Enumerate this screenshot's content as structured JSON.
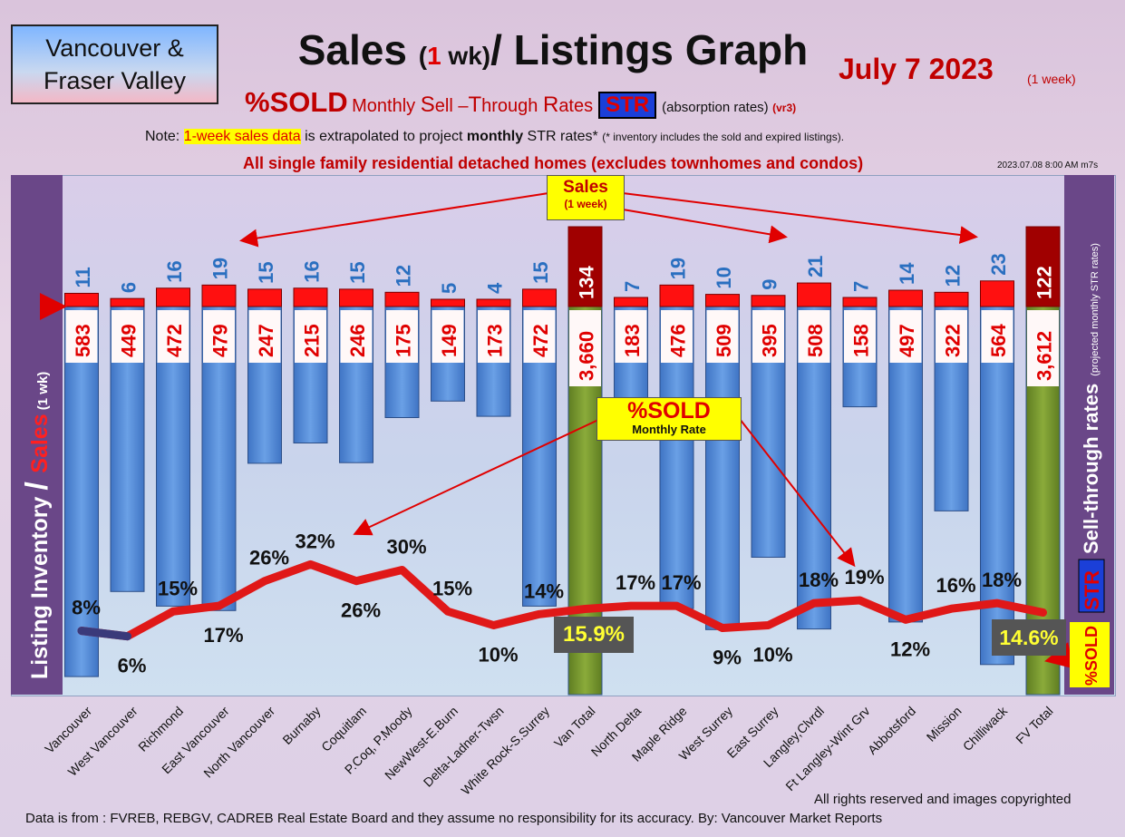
{
  "header": {
    "region": [
      "Vancouver &",
      "Fraser Valley"
    ],
    "title_pre": "Sales ",
    "title_paren_open": "(",
    "title_one": "1",
    "title_paren_close": " wk)",
    "title_post": "/ Listings Graph",
    "date": "July 7  2023",
    "date_sub": "(1 week)",
    "subtitle_sold": "%SOLD",
    "subtitle_s": "S",
    "subtitle_ell": "ell –",
    "subtitle_t": "T",
    "subtitle_hrough": "hrough ",
    "subtitle_r": "R",
    "subtitle_ates": "ates",
    "subtitle_monthly": "Monthly ",
    "str_badge": "STR",
    "subtitle_abs": "(absorption rates)",
    "subtitle_vr": "(vr3)",
    "note_pre": "Note: ",
    "note_hl": "1-week sales data",
    "note_mid": " is extrapolated to project ",
    "note_bold": "monthly",
    "note_post": " STR rates* ",
    "note_small": "(* inventory includes the sold and expired listings).",
    "scope": "All single family residential detached homes (excludes townhomes and condos)",
    "stamp": "2023.07.08 8:00 AM m7s"
  },
  "axis": {
    "left_label_a": "Listing Inventory ",
    "left_label_slash": "/ ",
    "left_label_b": "Sales",
    "left_label_c": " (1 wk)",
    "right_label": "Sell-through rates",
    "right_label_small": "(projected monthly STR rates)",
    "right_str": "STR",
    "right_sold": "%SOLD"
  },
  "callouts": {
    "sales_line1": "Sales",
    "sales_line2": "(1 week)",
    "sold_line1": "%SOLD",
    "sold_line2": "Monthly Rate"
  },
  "footer": {
    "copyright": "All rights reserved and  images copyrighted",
    "source": "Data is from : FVREB, REBGV, CADREB Real Estate Board and they assume no responsibility for its accuracy. By: Vancouver Market Reports"
  },
  "colors": {
    "inventory": "#5b8fd6",
    "total": "#7a9a2e",
    "sales": "#ff1010",
    "sales_total": "#a00000",
    "sales_label": "#2a6fc0",
    "rate_line": "#e01818"
  },
  "chart_data": {
    "type": "bar",
    "categories": [
      "Vancouver",
      "West Vancouver",
      "Richmond",
      "East Vancouver",
      "North Vancouver",
      "Burnaby",
      "Coquitlam",
      "P.Coq, P.Moody",
      "NewWest-E.Burn",
      "Delta-Ladner-Twsn",
      "White Rock-S.Surrey",
      "Van Total",
      "North Delta",
      "Maple Ridge",
      "West Surrey",
      "East Surrey",
      "Langley,Clvrdl",
      "Ft Langley-Wint Grv",
      "Abbotsford",
      "Mission",
      "Chilliwack",
      "FV Total"
    ],
    "series": [
      {
        "name": "Listing Inventory",
        "display": [
          "583",
          "449",
          "472",
          "479",
          "247",
          "215",
          "246",
          "175",
          "149",
          "173",
          "472",
          "3,660",
          "183",
          "476",
          "509",
          "395",
          "508",
          "158",
          "497",
          "322",
          "564",
          "3,612"
        ]
      },
      {
        "name": "Sales",
        "values": [
          11,
          6,
          16,
          19,
          15,
          16,
          15,
          12,
          5,
          4,
          15,
          134,
          7,
          19,
          10,
          9,
          21,
          7,
          14,
          12,
          23,
          122
        ]
      },
      {
        "name": "%SOLD",
        "display": [
          "8%",
          "6%",
          "15%",
          "17%",
          "26%",
          "32%",
          "26%",
          "30%",
          "15%",
          "10%",
          "14%",
          "15.9%",
          "17%",
          "17%",
          "9%",
          "10%",
          "18%",
          "19%",
          "12%",
          "16%",
          "18%",
          "14.6%"
        ]
      }
    ],
    "rate_values": [
      8,
      6,
      15,
      17,
      26,
      32,
      26,
      30,
      15,
      10,
      14,
      15.9,
      17,
      17,
      9,
      10,
      18,
      19,
      12,
      16,
      18,
      14.6
    ],
    "inventory_values": [
      583,
      449,
      472,
      479,
      247,
      215,
      246,
      175,
      149,
      173,
      472,
      3660,
      183,
      476,
      509,
      395,
      508,
      158,
      497,
      322,
      564,
      3612
    ]
  }
}
